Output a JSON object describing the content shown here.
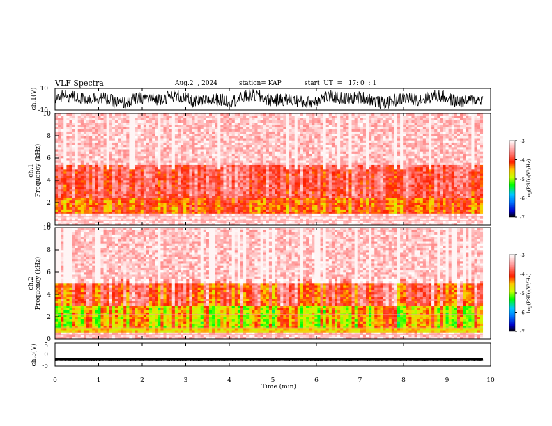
{
  "header": {
    "title": "VLF Spectra",
    "date": "Aug.2  , 2024",
    "station": "station= KAP",
    "start": "start  UT  =   17: 0  : 1"
  },
  "colors": {
    "spectrogram_scale": [
      "#000000",
      "#0000c8",
      "#0078ff",
      "#00c8ff",
      "#00ff00",
      "#c8ff00",
      "#ffc800",
      "#ff2000",
      "#ff9090",
      "#ffffff"
    ],
    "waveform": "#000000"
  },
  "chart_data": [
    {
      "type": "line",
      "panel": "ch1-waveform",
      "ylabel": "ch.1(V)",
      "ylim": [
        -10,
        10
      ],
      "yticks": [
        "10",
        "-10"
      ],
      "xlim": [
        0,
        10
      ],
      "description_values": {
        "typical_range": [
          -6,
          8
        ]
      }
    },
    {
      "type": "heatmap",
      "panel": "ch1-spectrogram",
      "ylabel": "ch.1\nFrequency (kHz)",
      "ylabel_line1": "ch.1",
      "ylabel_line2": "Frequency  (kHz)",
      "ylim": [
        0,
        10
      ],
      "yticks": [
        "0",
        "2",
        "4",
        "6",
        "8",
        "10"
      ],
      "xlim": [
        0,
        9.82
      ],
      "colorbar": {
        "label": "log(PSD)(V²/Hz)",
        "ticks": [
          "-3",
          "-4",
          "-5",
          "-6",
          "-7"
        ],
        "range": [
          -7,
          -3
        ]
      },
      "bands": [
        {
          "freq_khz": [
            0,
            1
          ],
          "log_psd": -3.2
        },
        {
          "freq_khz": [
            1,
            2.5
          ],
          "log_psd": -4.2
        },
        {
          "freq_khz": [
            2.5,
            5.5
          ],
          "log_psd": -3.8
        },
        {
          "freq_khz": [
            5.5,
            10
          ],
          "log_psd": -3.3
        }
      ]
    },
    {
      "type": "heatmap",
      "panel": "ch2-spectrogram",
      "ylabel_line1": "ch.2",
      "ylabel_line2": "Frequency  (kHz)",
      "ylim": [
        0,
        10
      ],
      "yticks": [
        "0",
        "2",
        "4",
        "6",
        "8",
        "10"
      ],
      "xlim": [
        0,
        9.82
      ],
      "colorbar": {
        "label": "log(PSD)(V²/Hz)",
        "ticks": [
          "-3",
          "-4",
          "-5",
          "-6",
          "-7"
        ],
        "range": [
          -7,
          -3
        ]
      },
      "bands": [
        {
          "freq_khz": [
            0,
            0.6
          ],
          "log_psd": -3.3
        },
        {
          "freq_khz": [
            0.6,
            3
          ],
          "log_psd": -4.6
        },
        {
          "freq_khz": [
            3,
            5
          ],
          "log_psd": -3.9
        },
        {
          "freq_khz": [
            5,
            10
          ],
          "log_psd": -3.3
        }
      ]
    },
    {
      "type": "line",
      "panel": "ch3-waveform",
      "ylabel": "ch.3(V)",
      "ylim": [
        -5,
        5
      ],
      "yticks": [
        "5",
        "0",
        "-5"
      ],
      "xlim": [
        0,
        10
      ],
      "xticks": [
        "0",
        "1",
        "2",
        "3",
        "4",
        "5",
        "6",
        "7",
        "8",
        "9",
        "10"
      ],
      "xlabel": "Time  (min)",
      "description_values": {
        "level": -2,
        "range": [
          -2.5,
          -1.5
        ]
      }
    }
  ]
}
